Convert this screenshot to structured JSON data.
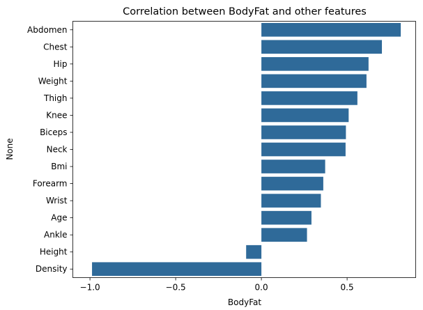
{
  "chart_data": {
    "type": "bar",
    "orientation": "horizontal",
    "title": "Correlation between BodyFat and other features",
    "xlabel": "BodyFat",
    "ylabel": "None",
    "xlim": [
      -1.1,
      0.9
    ],
    "xticks": [
      -1.0,
      -0.5,
      0.0,
      0.5
    ],
    "xtick_labels": [
      "−1.0",
      "−0.5",
      "0.0",
      "0.5"
    ],
    "grid": false,
    "bar_color": "#2f6a99",
    "categories": [
      "Abdomen",
      "Chest",
      "Hip",
      "Weight",
      "Thigh",
      "Knee",
      "Biceps",
      "Neck",
      "Bmi",
      "Forearm",
      "Wrist",
      "Age",
      "Ankle",
      "Height",
      "Density"
    ],
    "values": [
      0.813,
      0.703,
      0.625,
      0.613,
      0.56,
      0.509,
      0.493,
      0.491,
      0.372,
      0.361,
      0.347,
      0.292,
      0.266,
      -0.089,
      -0.988
    ]
  }
}
